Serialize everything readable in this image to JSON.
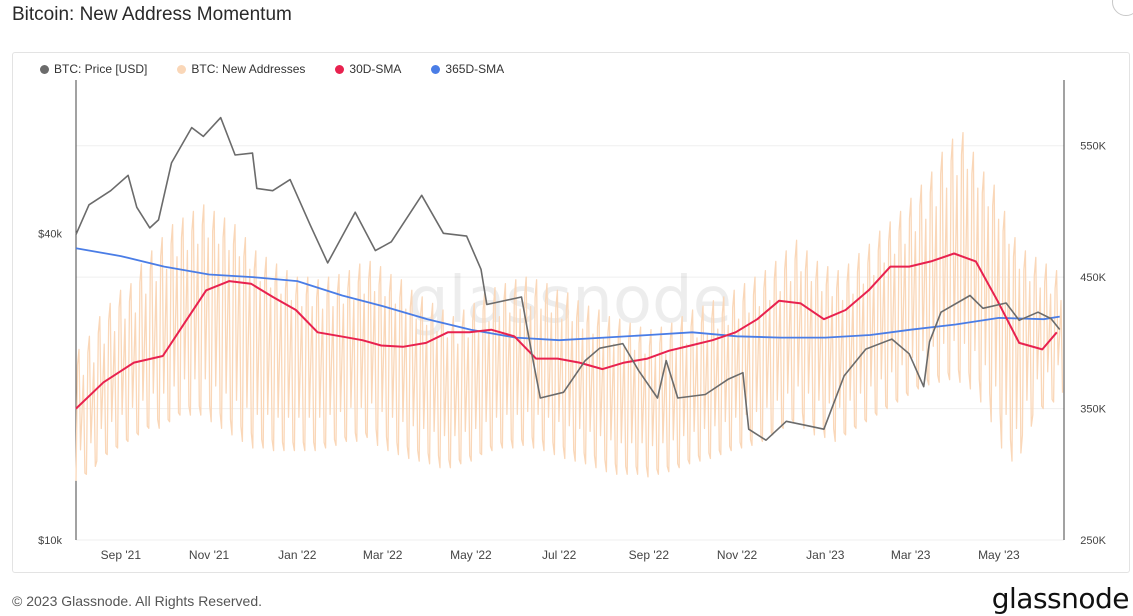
{
  "header": {
    "title": "Bitcoin: New Address Momentum"
  },
  "footer": {
    "copyright": "© 2023 Glassnode. All Rights Reserved.",
    "brand": "glassnode"
  },
  "watermark": "glassnode",
  "colors": {
    "price": "#6b6b6b",
    "new_addresses": "#fad7b8",
    "sma30": "#e8224f",
    "sma365": "#4a7de6"
  },
  "chart_data": {
    "type": "line",
    "title": "Bitcoin: New Address Momentum",
    "legend_position": "top-left",
    "grid": "horizontal",
    "x_ticks": [
      "Sep '21",
      "Nov '21",
      "Jan '22",
      "Mar '22",
      "May '22",
      "Jul '22",
      "Sep '22",
      "Nov '22",
      "Jan '23",
      "Mar '23",
      "May '23"
    ],
    "x_tick_dates": [
      "2021-09-01",
      "2021-11-01",
      "2022-01-01",
      "2022-03-01",
      "2022-05-01",
      "2022-07-01",
      "2022-09-01",
      "2022-11-01",
      "2023-01-01",
      "2023-03-01",
      "2023-05-01"
    ],
    "x_range": [
      "2021-08-01",
      "2023-06-15"
    ],
    "y_left": {
      "label": "",
      "scale": "log",
      "range": [
        10000,
        80000
      ],
      "ticks": [
        {
          "value": 10000,
          "label": "$10k"
        },
        {
          "value": 40000,
          "label": "$40k"
        }
      ]
    },
    "y_right": {
      "label": "",
      "scale": "linear",
      "range": [
        250000,
        600000
      ],
      "ticks": [
        {
          "value": 250000,
          "label": "250K"
        },
        {
          "value": 350000,
          "label": "350K"
        },
        {
          "value": 450000,
          "label": "450K"
        },
        {
          "value": 550000,
          "label": "550K"
        }
      ]
    },
    "series": [
      {
        "name": "BTC: Price [USD]",
        "axis": "left",
        "color": "#6b6b6b",
        "points": [
          [
            "2021-08-01",
            39800
          ],
          [
            "2021-08-10",
            45500
          ],
          [
            "2021-08-25",
            48500
          ],
          [
            "2021-09-06",
            52000
          ],
          [
            "2021-09-12",
            45000
          ],
          [
            "2021-09-21",
            41000
          ],
          [
            "2021-09-27",
            42500
          ],
          [
            "2021-10-06",
            55000
          ],
          [
            "2021-10-20",
            64500
          ],
          [
            "2021-10-28",
            62000
          ],
          [
            "2021-11-09",
            67500
          ],
          [
            "2021-11-19",
            57000
          ],
          [
            "2021-12-01",
            57500
          ],
          [
            "2021-12-04",
            49000
          ],
          [
            "2021-12-15",
            48500
          ],
          [
            "2021-12-27",
            51000
          ],
          [
            "2022-01-10",
            41500
          ],
          [
            "2022-01-22",
            35000
          ],
          [
            "2022-02-10",
            44000
          ],
          [
            "2022-02-24",
            37000
          ],
          [
            "2022-03-07",
            38500
          ],
          [
            "2022-03-28",
            47500
          ],
          [
            "2022-04-12",
            40000
          ],
          [
            "2022-04-28",
            39500
          ],
          [
            "2022-05-08",
            34000
          ],
          [
            "2022-05-12",
            29000
          ],
          [
            "2022-06-05",
            30000
          ],
          [
            "2022-06-13",
            22500
          ],
          [
            "2022-06-18",
            19000
          ],
          [
            "2022-07-04",
            19500
          ],
          [
            "2022-07-19",
            22500
          ],
          [
            "2022-07-29",
            23800
          ],
          [
            "2022-08-14",
            24300
          ],
          [
            "2022-08-25",
            21500
          ],
          [
            "2022-09-07",
            19000
          ],
          [
            "2022-09-13",
            22500
          ],
          [
            "2022-09-21",
            19000
          ],
          [
            "2022-10-10",
            19300
          ],
          [
            "2022-10-26",
            20700
          ],
          [
            "2022-11-05",
            21300
          ],
          [
            "2022-11-09",
            16500
          ],
          [
            "2022-11-21",
            15700
          ],
          [
            "2022-12-05",
            17100
          ],
          [
            "2022-12-18",
            16800
          ],
          [
            "2022-12-31",
            16500
          ],
          [
            "2023-01-14",
            21000
          ],
          [
            "2023-01-29",
            23700
          ],
          [
            "2023-02-16",
            24800
          ],
          [
            "2023-02-28",
            23200
          ],
          [
            "2023-03-10",
            20000
          ],
          [
            "2023-03-14",
            24500
          ],
          [
            "2023-03-22",
            28000
          ],
          [
            "2023-04-11",
            30200
          ],
          [
            "2023-04-20",
            28500
          ],
          [
            "2023-05-06",
            29200
          ],
          [
            "2023-05-15",
            27000
          ],
          [
            "2023-05-28",
            28000
          ],
          [
            "2023-06-06",
            27200
          ],
          [
            "2023-06-12",
            25900
          ]
        ]
      },
      {
        "name": "BTC: New Addresses",
        "axis": "right",
        "color": "#fad7b8",
        "generated_note_free": true,
        "weekly_high_low": [
          [
            395000,
            295000
          ],
          [
            405000,
            300000
          ],
          [
            420000,
            310000
          ],
          [
            430000,
            315000
          ],
          [
            440000,
            320000
          ],
          [
            445000,
            325000
          ],
          [
            460000,
            330000
          ],
          [
            470000,
            335000
          ],
          [
            480000,
            335000
          ],
          [
            490000,
            340000
          ],
          [
            495000,
            345000
          ],
          [
            500000,
            345000
          ],
          [
            505000,
            345000
          ],
          [
            500000,
            340000
          ],
          [
            495000,
            335000
          ],
          [
            490000,
            330000
          ],
          [
            480000,
            325000
          ],
          [
            470000,
            320000
          ],
          [
            465000,
            320000
          ],
          [
            460000,
            318000
          ],
          [
            455000,
            318000
          ],
          [
            450000,
            318000
          ],
          [
            450000,
            318000
          ],
          [
            448000,
            318000
          ],
          [
            450000,
            320000
          ],
          [
            452000,
            322000
          ],
          [
            455000,
            325000
          ],
          [
            460000,
            325000
          ],
          [
            462000,
            328000
          ],
          [
            458000,
            322000
          ],
          [
            452000,
            318000
          ],
          [
            448000,
            315000
          ],
          [
            440000,
            312000
          ],
          [
            435000,
            310000
          ],
          [
            430000,
            308000
          ],
          [
            425000,
            305000
          ],
          [
            420000,
            305000
          ],
          [
            425000,
            308000
          ],
          [
            430000,
            310000
          ],
          [
            438000,
            315000
          ],
          [
            442000,
            318000
          ],
          [
            445000,
            320000
          ],
          [
            448000,
            320000
          ],
          [
            450000,
            322000
          ],
          [
            448000,
            320000
          ],
          [
            445000,
            318000
          ],
          [
            440000,
            315000
          ],
          [
            438000,
            312000
          ],
          [
            432000,
            310000
          ],
          [
            428000,
            308000
          ],
          [
            425000,
            305000
          ],
          [
            420000,
            302000
          ],
          [
            418000,
            300000
          ],
          [
            415000,
            300000
          ],
          [
            412000,
            300000
          ],
          [
            410000,
            298000
          ],
          [
            412000,
            300000
          ],
          [
            415000,
            302000
          ],
          [
            420000,
            305000
          ],
          [
            425000,
            308000
          ],
          [
            428000,
            310000
          ],
          [
            432000,
            312000
          ],
          [
            435000,
            315000
          ],
          [
            440000,
            318000
          ],
          [
            445000,
            320000
          ],
          [
            450000,
            322000
          ],
          [
            455000,
            325000
          ],
          [
            462000,
            330000
          ],
          [
            470000,
            335000
          ],
          [
            478000,
            340000
          ],
          [
            470000,
            335000
          ],
          [
            462000,
            330000
          ],
          [
            458000,
            328000
          ],
          [
            455000,
            325000
          ],
          [
            460000,
            330000
          ],
          [
            468000,
            335000
          ],
          [
            475000,
            340000
          ],
          [
            485000,
            345000
          ],
          [
            492000,
            350000
          ],
          [
            500000,
            355000
          ],
          [
            510000,
            360000
          ],
          [
            520000,
            365000
          ],
          [
            530000,
            368000
          ],
          [
            545000,
            370000
          ],
          [
            555000,
            372000
          ],
          [
            560000,
            370000
          ],
          [
            545000,
            365000
          ],
          [
            530000,
            355000
          ],
          [
            520000,
            340000
          ],
          [
            500000,
            320000
          ],
          [
            480000,
            310000
          ],
          [
            470000,
            330000
          ],
          [
            465000,
            345000
          ],
          [
            460000,
            350000
          ],
          [
            455000,
            355000
          ]
        ]
      },
      {
        "name": "30D-SMA",
        "axis": "right",
        "color": "#e8224f",
        "points": [
          [
            "2021-08-01",
            350000
          ],
          [
            "2021-08-20",
            370000
          ],
          [
            "2021-09-10",
            385000
          ],
          [
            "2021-09-30",
            390000
          ],
          [
            "2021-10-15",
            415000
          ],
          [
            "2021-10-30",
            440000
          ],
          [
            "2021-11-15",
            447000
          ],
          [
            "2021-11-30",
            445000
          ],
          [
            "2021-12-15",
            435000
          ],
          [
            "2021-12-31",
            425000
          ],
          [
            "2022-01-15",
            408000
          ],
          [
            "2022-01-31",
            405000
          ],
          [
            "2022-02-15",
            402000
          ],
          [
            "2022-02-28",
            398000
          ],
          [
            "2022-03-15",
            397000
          ],
          [
            "2022-03-31",
            400000
          ],
          [
            "2022-04-15",
            408000
          ],
          [
            "2022-04-30",
            408000
          ],
          [
            "2022-05-15",
            410000
          ],
          [
            "2022-05-31",
            405000
          ],
          [
            "2022-06-15",
            388000
          ],
          [
            "2022-06-30",
            388000
          ],
          [
            "2022-07-15",
            385000
          ],
          [
            "2022-07-31",
            380000
          ],
          [
            "2022-08-15",
            385000
          ],
          [
            "2022-08-31",
            388000
          ],
          [
            "2022-09-15",
            394000
          ],
          [
            "2022-09-30",
            398000
          ],
          [
            "2022-10-15",
            402000
          ],
          [
            "2022-10-31",
            408000
          ],
          [
            "2022-11-15",
            418000
          ],
          [
            "2022-11-30",
            432000
          ],
          [
            "2022-12-15",
            430000
          ],
          [
            "2022-12-31",
            418000
          ],
          [
            "2023-01-15",
            425000
          ],
          [
            "2023-01-31",
            440000
          ],
          [
            "2023-02-15",
            458000
          ],
          [
            "2023-02-28",
            458000
          ],
          [
            "2023-03-15",
            462000
          ],
          [
            "2023-03-31",
            468000
          ],
          [
            "2023-04-15",
            462000
          ],
          [
            "2023-04-30",
            432000
          ],
          [
            "2023-05-15",
            400000
          ],
          [
            "2023-05-31",
            395000
          ],
          [
            "2023-06-10",
            408000
          ]
        ]
      },
      {
        "name": "365D-SMA",
        "axis": "right",
        "color": "#4a7de6",
        "points": [
          [
            "2021-08-01",
            472000
          ],
          [
            "2021-09-01",
            466000
          ],
          [
            "2021-10-01",
            458000
          ],
          [
            "2021-11-01",
            452000
          ],
          [
            "2021-12-01",
            450000
          ],
          [
            "2022-01-01",
            447000
          ],
          [
            "2022-02-01",
            436000
          ],
          [
            "2022-03-01",
            428000
          ],
          [
            "2022-04-01",
            418000
          ],
          [
            "2022-05-01",
            410000
          ],
          [
            "2022-06-01",
            404000
          ],
          [
            "2022-07-01",
            402000
          ],
          [
            "2022-08-01",
            404000
          ],
          [
            "2022-09-01",
            406000
          ],
          [
            "2022-10-01",
            408000
          ],
          [
            "2022-11-01",
            405000
          ],
          [
            "2022-12-01",
            404000
          ],
          [
            "2023-01-01",
            404000
          ],
          [
            "2023-02-01",
            406000
          ],
          [
            "2023-03-01",
            410000
          ],
          [
            "2023-04-01",
            414000
          ],
          [
            "2023-05-01",
            419000
          ],
          [
            "2023-06-01",
            418000
          ],
          [
            "2023-06-12",
            420000
          ]
        ]
      }
    ]
  }
}
